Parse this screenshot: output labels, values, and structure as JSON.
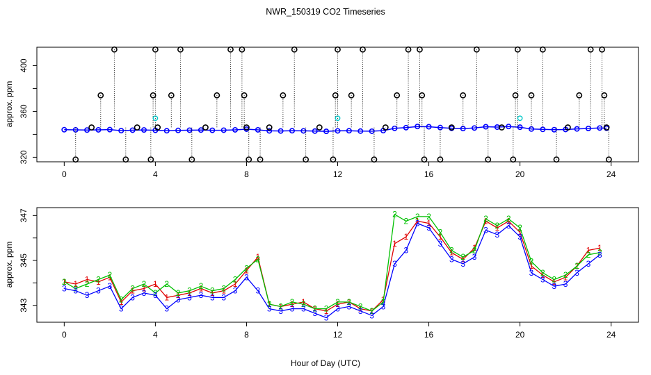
{
  "title": "NWR_150319  CO2 Timeseries",
  "colors": {
    "frame": "#000000",
    "series_1": "#e00000",
    "series_2": "#00c000",
    "series_3": "#0000ff",
    "outlier": "#000000",
    "highlight": "#00c8c8"
  },
  "chart_data": [
    {
      "type": "scatter",
      "title": "",
      "xlabel": "",
      "ylabel": "approx. ppm",
      "xlim": [
        -1.2,
        25.2
      ],
      "ylim": [
        316,
        416
      ],
      "grid": false,
      "x_ticks": [
        0,
        4,
        8,
        12,
        16,
        20,
        24
      ],
      "x_tick_labels": [
        "0",
        "4",
        "8",
        "12",
        "16",
        "20",
        "24"
      ],
      "y_ticks": [
        320,
        360,
        400
      ],
      "y_tick_labels": [
        "320",
        "360",
        "400"
      ],
      "y_minor_ticks": [
        340,
        380
      ],
      "series": [
        {
          "marker": "o",
          "color": "#0000ff",
          "points": [
            [
              0,
              344.0
            ],
            [
              0.5,
              343.9
            ],
            [
              1,
              343.7
            ],
            [
              1.5,
              343.9
            ],
            [
              2,
              344.1
            ],
            [
              2.5,
              343.2
            ],
            [
              3,
              343.6
            ],
            [
              3.5,
              343.8
            ],
            [
              4,
              343.5
            ],
            [
              4.5,
              343.1
            ],
            [
              5,
              343.4
            ],
            [
              5.5,
              343.6
            ],
            [
              6,
              343.7
            ],
            [
              6.5,
              343.5
            ],
            [
              7,
              343.6
            ],
            [
              7.5,
              343.9
            ],
            [
              8,
              344.5
            ],
            [
              8.5,
              343.9
            ],
            [
              9,
              343.0
            ],
            [
              9.5,
              342.9
            ],
            [
              10,
              343.1
            ],
            [
              10.5,
              343.0
            ],
            [
              11,
              342.8
            ],
            [
              11.5,
              342.6
            ],
            [
              12,
              343.0
            ],
            [
              12.5,
              343.1
            ],
            [
              13,
              342.8
            ],
            [
              13.5,
              342.7
            ],
            [
              14,
              343.2
            ],
            [
              14.5,
              345.2
            ],
            [
              15,
              345.8
            ],
            [
              15.5,
              346.8
            ],
            [
              16,
              346.6
            ],
            [
              16.5,
              345.9
            ],
            [
              17,
              345.2
            ],
            [
              17.5,
              345.0
            ],
            [
              18,
              345.5
            ],
            [
              18.5,
              346.6
            ],
            [
              19,
              346.3
            ],
            [
              19.5,
              346.8
            ],
            [
              20,
              346.2
            ],
            [
              20.5,
              344.6
            ],
            [
              21,
              344.3
            ],
            [
              21.5,
              344.0
            ],
            [
              22,
              344.2
            ],
            [
              22.5,
              344.7
            ],
            [
              23,
              345.1
            ],
            [
              23.5,
              345.5
            ],
            [
              23.8,
              345.3
            ]
          ]
        },
        {
          "marker": "o",
          "color": "#000000",
          "name": "",
          "points": [
            [
              0.5,
              318
            ],
            [
              1.2,
              346
            ],
            [
              1.6,
              374
            ],
            [
              2.2,
              414
            ],
            [
              2.7,
              318
            ],
            [
              3.2,
              346
            ],
            [
              3.8,
              318
            ],
            [
              3.9,
              374
            ],
            [
              4.0,
              414
            ],
            [
              4.1,
              346
            ],
            [
              4.7,
              374
            ],
            [
              5.1,
              414
            ],
            [
              5.6,
              318
            ],
            [
              6.2,
              346
            ],
            [
              6.7,
              374
            ],
            [
              7.3,
              414
            ],
            [
              7.8,
              414
            ],
            [
              7.9,
              374
            ],
            [
              8.0,
              346
            ],
            [
              8.1,
              318
            ],
            [
              8.6,
              318
            ],
            [
              9.0,
              346
            ],
            [
              9.6,
              374
            ],
            [
              10.1,
              414
            ],
            [
              10.6,
              318
            ],
            [
              11.2,
              346
            ],
            [
              11.8,
              318
            ],
            [
              11.9,
              374
            ],
            [
              12.0,
              414
            ],
            [
              12.6,
              374
            ],
            [
              13.1,
              414
            ],
            [
              13.6,
              318
            ],
            [
              14.1,
              346
            ],
            [
              14.6,
              374
            ],
            [
              15.1,
              414
            ],
            [
              15.6,
              414
            ],
            [
              15.7,
              374
            ],
            [
              15.8,
              318
            ],
            [
              16.5,
              318
            ],
            [
              17.0,
              346
            ],
            [
              17.5,
              374
            ],
            [
              18.1,
              414
            ],
            [
              18.6,
              318
            ],
            [
              19.2,
              346
            ],
            [
              19.7,
              318
            ],
            [
              19.8,
              374
            ],
            [
              19.9,
              414
            ],
            [
              20.5,
              374
            ],
            [
              21.0,
              414
            ],
            [
              21.6,
              318
            ],
            [
              22.1,
              346
            ],
            [
              22.6,
              374
            ],
            [
              23.1,
              414
            ],
            [
              23.6,
              414
            ],
            [
              23.7,
              374
            ],
            [
              23.8,
              346
            ],
            [
              23.9,
              318
            ]
          ]
        },
        {
          "marker": "o",
          "color": "#00c8c8",
          "points": [
            [
              4.0,
              354
            ],
            [
              12.0,
              354
            ],
            [
              20.0,
              354
            ]
          ]
        }
      ]
    },
    {
      "type": "scatter",
      "title": "",
      "xlabel": "Hour of Day (UTC)",
      "ylabel": "approx. ppm",
      "xlim": [
        -1.2,
        25.2
      ],
      "ylim": [
        342.25,
        347.35
      ],
      "grid": false,
      "x_ticks": [
        0,
        4,
        8,
        12,
        16,
        20,
        24
      ],
      "x_tick_labels": [
        "0",
        "4",
        "8",
        "12",
        "16",
        "20",
        "24"
      ],
      "y_ticks": [
        343,
        345,
        347
      ],
      "y_tick_labels": [
        "343",
        "345",
        "347"
      ],
      "y_minor_ticks": [
        344,
        346
      ],
      "series": [
        {
          "marker": "1",
          "color": "#e00000",
          "x": [
            0,
            0.5,
            1,
            1.5,
            2,
            2.5,
            3,
            3.5,
            4,
            4.5,
            5,
            5.5,
            6,
            6.5,
            7,
            7.5,
            8,
            8.5,
            9,
            9.5,
            10,
            10.5,
            11,
            11.5,
            12,
            12.5,
            13,
            13.5,
            14,
            14.5,
            15,
            15.5,
            16,
            16.5,
            17,
            17.5,
            18,
            18.5,
            19,
            19.5,
            20,
            20.5,
            21,
            21.5,
            22,
            22.5,
            23,
            23.5
          ],
          "y": [
            344.05,
            343.95,
            344.15,
            344.05,
            344.25,
            343.15,
            343.65,
            343.75,
            343.95,
            343.35,
            343.45,
            343.55,
            343.75,
            343.55,
            343.65,
            343.95,
            344.55,
            345.15,
            343.05,
            342.95,
            343.05,
            343.15,
            342.85,
            342.75,
            343.05,
            343.15,
            342.85,
            342.75,
            343.25,
            345.75,
            346.05,
            346.75,
            346.65,
            346.05,
            345.35,
            345.05,
            345.55,
            346.75,
            346.45,
            346.75,
            346.25,
            344.75,
            344.35,
            344.05,
            344.25,
            344.75,
            345.45,
            345.55
          ]
        },
        {
          "marker": "2",
          "color": "#00c000",
          "x": [
            0,
            0.5,
            1,
            1.5,
            2,
            2.5,
            3,
            3.5,
            4,
            4.5,
            5,
            5.5,
            6,
            6.5,
            7,
            7.5,
            8,
            8.5,
            9,
            9.5,
            10,
            10.5,
            11,
            11.5,
            12,
            12.5,
            13,
            13.5,
            14,
            14.5,
            15,
            15.5,
            16,
            16.5,
            17,
            17.5,
            18,
            18.5,
            19,
            19.5,
            20,
            20.5,
            21,
            21.5,
            22,
            22.5,
            23,
            23.5
          ],
          "y": [
            344.05,
            343.75,
            343.95,
            344.15,
            344.35,
            343.25,
            343.75,
            343.95,
            343.55,
            343.95,
            343.55,
            343.65,
            343.85,
            343.65,
            343.75,
            344.15,
            344.65,
            345.05,
            343.05,
            342.95,
            343.15,
            343.05,
            342.85,
            342.85,
            343.15,
            343.15,
            342.95,
            342.75,
            343.15,
            347.05,
            346.75,
            346.95,
            346.95,
            346.25,
            345.45,
            345.15,
            345.45,
            346.85,
            346.55,
            346.85,
            346.45,
            344.95,
            344.45,
            344.15,
            344.35,
            344.75,
            345.25,
            345.35
          ]
        },
        {
          "marker": "3",
          "color": "#0000ff",
          "x": [
            0,
            0.5,
            1,
            1.5,
            2,
            2.5,
            3,
            3.5,
            4,
            4.5,
            5,
            5.5,
            6,
            6.5,
            7,
            7.5,
            8,
            8.5,
            9,
            9.5,
            10,
            10.5,
            11,
            11.5,
            12,
            12.5,
            13,
            13.5,
            14,
            14.5,
            15,
            15.5,
            16,
            16.5,
            17,
            17.5,
            18,
            18.5,
            19,
            19.5,
            20,
            20.5,
            21,
            21.5,
            22,
            22.5,
            23,
            23.5
          ],
          "y": [
            343.75,
            343.65,
            343.45,
            343.65,
            343.85,
            342.85,
            343.35,
            343.55,
            343.45,
            342.85,
            343.25,
            343.35,
            343.45,
            343.35,
            343.35,
            343.65,
            344.25,
            343.65,
            342.85,
            342.75,
            342.85,
            342.85,
            342.65,
            342.45,
            342.85,
            342.95,
            342.75,
            342.55,
            342.95,
            344.85,
            345.45,
            346.65,
            346.45,
            345.75,
            345.05,
            344.85,
            345.15,
            346.35,
            346.15,
            346.55,
            346.05,
            344.45,
            344.15,
            343.85,
            343.95,
            344.45,
            344.85,
            345.25
          ]
        }
      ]
    }
  ]
}
